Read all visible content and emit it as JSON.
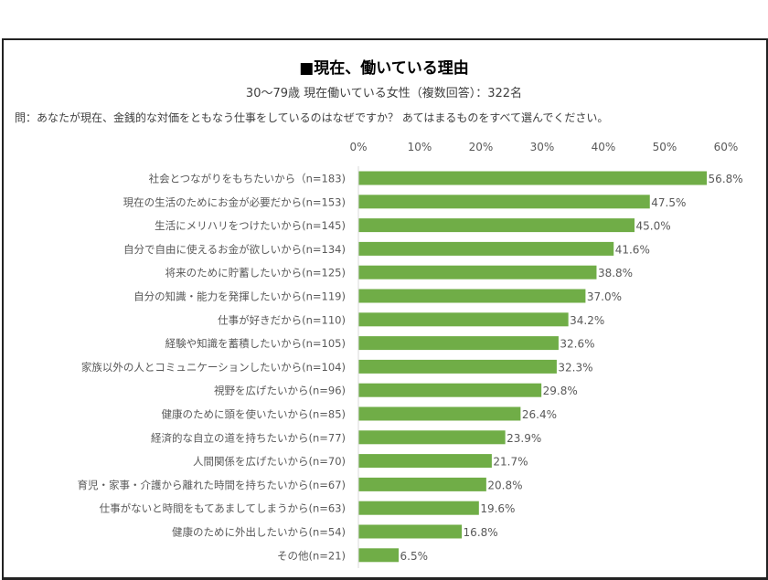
{
  "chart_data": {
    "type": "bar",
    "orientation": "horizontal",
    "title": "■現在、働いている理由",
    "subtitle": "30～79歳 現在働いている女性（複数回答）：322名",
    "question": "問：あなたが現在、金銭的な対価をともなう仕事をしているのはなぜですか？ あてはまるものをすべて選んでください。",
    "xlim": [
      0,
      60
    ],
    "x_ticks": [
      "0%",
      "10%",
      "20%",
      "30%",
      "40%",
      "50%",
      "60%"
    ],
    "x_tick_position": "top",
    "grid": false,
    "bar_color": "#70ad47",
    "categories": [
      "社会とつながりをもちたいから（n=183)",
      "現在の生活のためにお金が必要だから(n=153)",
      "生活にメリハリをつけたいから(n=145)",
      "自分で自由に使えるお金が欲しいから(n=134)",
      "将来のために貯蓄したいから(n=125)",
      "自分の知識・能力を発揮したいから(n=119)",
      "仕事が好きだから(n=110)",
      "経験や知識を蓄積したいから(n=105)",
      "家族以外の人とコミュニケーションしたいから(n=104)",
      "視野を広げたいから(n=96)",
      "健康のために頭を使いたいから(n=85)",
      "経済的な自立の道を持ちたいから(n=77)",
      "人間関係を広げたいから(n=70)",
      "育児・家事・介護から離れた時間を持ちたいから(n=67)",
      "仕事がないと時間をもてあましてしまうから(n=63)",
      "健康のために外出したいから(n=54)",
      "その他(n=21)"
    ],
    "values": [
      56.8,
      47.5,
      45.0,
      41.6,
      38.8,
      37.0,
      34.2,
      32.6,
      32.3,
      29.8,
      26.4,
      23.9,
      21.7,
      20.8,
      19.6,
      16.8,
      6.5
    ],
    "data_labels": [
      "56.8%",
      "47.5%",
      "45.0%",
      "41.6%",
      "38.8%",
      "37.0%",
      "34.2%",
      "32.6%",
      "32.3%",
      "29.8%",
      "26.4%",
      "23.9%",
      "21.7%",
      "20.8%",
      "19.6%",
      "16.8%",
      "6.5%"
    ]
  }
}
